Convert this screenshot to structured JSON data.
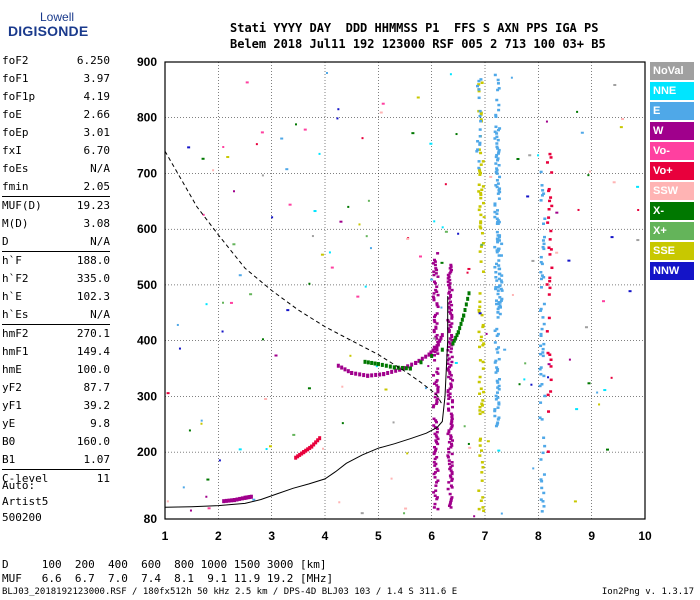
{
  "logo": {
    "line1": "Lowell",
    "line2": "DIGISONDE"
  },
  "header": {
    "labels": "Stati YYYY DAY  DDD HHMMSS P1  FFS S AXN PPS IGA PS",
    "values": "Belem 2018 Jul11 192 123000 RSF 005 2 713 100 03+ B5"
  },
  "params": {
    "g1": [
      {
        "k": "foF2",
        "v": "6.250"
      },
      {
        "k": "foF1",
        "v": "3.97"
      },
      {
        "k": "foF1p",
        "v": "4.19"
      },
      {
        "k": "foE",
        "v": "2.66"
      },
      {
        "k": "foEp",
        "v": "3.01"
      },
      {
        "k": "fxI",
        "v": "6.70"
      },
      {
        "k": "foEs",
        "v": "N/A"
      },
      {
        "k": "fmin",
        "v": "2.05"
      }
    ],
    "g2": [
      {
        "k": "MUF(D)",
        "v": "19.23"
      },
      {
        "k": "M(D)",
        "v": "3.08"
      },
      {
        "k": "D",
        "v": "N/A"
      }
    ],
    "g3": [
      {
        "k": "h`F",
        "v": "188.0"
      },
      {
        "k": "h`F2",
        "v": "335.0"
      },
      {
        "k": "h`E",
        "v": "102.3"
      },
      {
        "k": "h`Es",
        "v": "N/A"
      }
    ],
    "g4": [
      {
        "k": "hmF2",
        "v": "270.1"
      },
      {
        "k": "hmF1",
        "v": "149.4"
      },
      {
        "k": "hmE",
        "v": "100.0"
      },
      {
        "k": "yF2",
        "v": "87.7"
      },
      {
        "k": "yF1",
        "v": "39.2"
      },
      {
        "k": "yE",
        "v": "9.8"
      },
      {
        "k": "B0",
        "v": "160.0"
      },
      {
        "k": "B1",
        "v": "1.07"
      }
    ],
    "g5": [
      {
        "k": "C-level",
        "v": "11"
      }
    ]
  },
  "auto": {
    "l1": "Auto:",
    "l2": "Artist5",
    "l3": "500200"
  },
  "legend": [
    {
      "label": "NoVal",
      "color": "#a0a0a0"
    },
    {
      "label": "NNE",
      "color": "#00e5ff"
    },
    {
      "label": "E",
      "color": "#4fa8e8"
    },
    {
      "label": "W",
      "color": "#a0008c"
    },
    {
      "label": "Vo-",
      "color": "#ff40a0"
    },
    {
      "label": "Vo+",
      "color": "#e8003c"
    },
    {
      "label": "SSW",
      "color": "#ffb4b4"
    },
    {
      "label": "X-",
      "color": "#007800"
    },
    {
      "label": "X+",
      "color": "#64b45a"
    },
    {
      "label": "SSE",
      "color": "#c8c800"
    },
    {
      "label": "NNW",
      "color": "#1414c8"
    }
  ],
  "bottom": {
    "d_row": "D     100  200  400  600  800 1000 1500 3000 [km]",
    "muf_row": "MUF   6.6  6.7  7.0  7.4  8.1  9.1 11.9 19.2 [MHz]",
    "footer": "BLJ03_2018192123000.RSF / 180fx512h 50 kHz 2.5 km / DPS-4D BLJ03 103 / 1.4 S 311.6 E",
    "version": "Ion2Png v. 1.3.17"
  },
  "chart_data": {
    "type": "scatter",
    "x_ticks": [
      "1",
      "2",
      "3",
      "4",
      "5",
      "6",
      "7",
      "8",
      "9",
      "10"
    ],
    "y_ticks": [
      "80",
      "200",
      "300",
      "400",
      "500",
      "600",
      "700",
      "800",
      "900"
    ],
    "xlim": [
      1,
      10
    ],
    "ylim": [
      80,
      900
    ],
    "grid": true,
    "legend_position": "right",
    "traces": {
      "O_trace_low": [
        [
          3.45,
          190
        ],
        [
          3.6,
          200
        ],
        [
          3.75,
          210
        ],
        [
          3.9,
          225
        ]
      ],
      "O_trace_F": [
        [
          4.25,
          355
        ],
        [
          4.5,
          342
        ],
        [
          4.8,
          337
        ],
        [
          5.1,
          340
        ],
        [
          5.4,
          348
        ],
        [
          5.7,
          360
        ],
        [
          5.95,
          375
        ],
        [
          6.1,
          390
        ],
        [
          6.2,
          410
        ]
      ],
      "X_trace": [
        [
          4.75,
          362
        ],
        [
          5.0,
          358
        ],
        [
          5.3,
          352
        ],
        [
          5.6,
          350
        ],
        [
          6.4,
          395
        ],
        [
          6.5,
          415
        ],
        [
          6.6,
          445
        ],
        [
          6.7,
          485
        ]
      ],
      "E_trace": [
        [
          2.1,
          112
        ],
        [
          2.3,
          114
        ],
        [
          2.5,
          118
        ],
        [
          2.62,
          120
        ]
      ]
    },
    "profile_curve": [
      [
        1.0,
        101
      ],
      [
        1.5,
        102
      ],
      [
        2.0,
        104
      ],
      [
        2.5,
        108
      ],
      [
        2.8,
        115
      ],
      [
        3.1,
        125
      ],
      [
        3.4,
        135
      ],
      [
        3.7,
        143
      ],
      [
        4.0,
        152
      ],
      [
        4.2,
        165
      ],
      [
        4.4,
        180
      ],
      [
        4.7,
        195
      ],
      [
        5.0,
        207
      ],
      [
        5.3,
        215
      ],
      [
        5.6,
        224
      ],
      [
        5.9,
        234
      ],
      [
        6.1,
        244
      ],
      [
        6.2,
        255
      ],
      [
        6.25,
        300
      ],
      [
        6.28,
        360
      ],
      [
        6.3,
        400
      ],
      [
        6.3,
        480
      ]
    ],
    "dashed_curve": [
      [
        1.0,
        740
      ],
      [
        1.3,
        690
      ],
      [
        1.6,
        640
      ],
      [
        2.0,
        590
      ],
      [
        2.5,
        530
      ],
      [
        3.0,
        490
      ],
      [
        3.5,
        455
      ],
      [
        4.0,
        425
      ],
      [
        4.5,
        400
      ],
      [
        5.0,
        375
      ],
      [
        5.5,
        345
      ],
      [
        5.8,
        325
      ],
      [
        6.0,
        310
      ],
      [
        6.1,
        302
      ],
      [
        6.2,
        285
      ]
    ]
  }
}
